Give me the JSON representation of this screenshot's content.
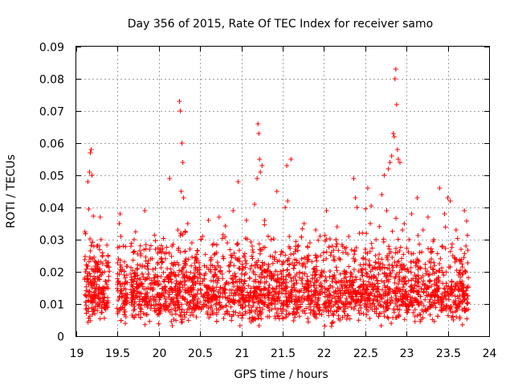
{
  "chart_data": {
    "type": "scatter",
    "title": "Day 356 of 2015, Rate Of TEC Index for receiver samo",
    "xlabel": "GPS time / hours",
    "ylabel": "ROTI / TECUs",
    "xlim": [
      19,
      24
    ],
    "ylim": [
      0,
      0.09
    ],
    "x_ticks": [
      "19",
      "19.5",
      "20",
      "20.5",
      "21",
      "21.5",
      "22",
      "22.5",
      "23",
      "23.5",
      "24"
    ],
    "y_ticks": [
      "0",
      "0.01",
      "0.02",
      "0.03",
      "0.04",
      "0.05",
      "0.06",
      "0.07",
      "0.08",
      "0.09"
    ],
    "grid": true,
    "series": [
      {
        "name": "ROTI",
        "color": "#ff0000",
        "marker": "plus",
        "x": [
          19.12,
          19.13,
          19.14,
          19.15,
          19.16,
          19.17,
          19.18,
          19.19,
          19.2,
          19.21,
          19.22,
          19.23,
          19.25,
          19.27,
          19.29,
          19.3,
          19.32,
          19.34,
          19.36,
          19.38,
          19.5,
          19.51,
          19.52,
          19.53,
          19.54,
          19.55,
          19.56,
          19.57,
          19.58,
          19.6,
          19.68,
          19.7,
          19.72,
          19.75,
          19.78,
          19.8,
          19.83,
          19.86,
          19.88,
          19.9,
          19.93,
          19.96,
          19.98,
          20.0,
          20.03,
          20.06,
          20.1,
          20.13,
          20.16,
          20.2,
          20.23,
          20.25,
          20.26,
          20.27,
          20.28,
          20.29,
          20.3,
          20.32,
          20.35,
          20.38,
          20.4,
          20.43,
          20.46,
          20.5,
          20.53,
          20.56,
          20.6,
          20.63,
          20.66,
          20.7,
          20.73,
          20.76,
          20.8,
          20.83,
          20.86,
          20.9,
          20.93,
          20.96,
          21.0,
          21.03,
          21.06,
          21.1,
          21.13,
          21.16,
          21.18,
          21.19,
          21.2,
          21.21,
          21.22,
          21.23,
          21.25,
          21.28,
          21.3,
          21.33,
          21.36,
          21.4,
          21.43,
          21.46,
          21.5,
          21.53,
          21.55,
          21.56,
          21.58,
          21.6,
          21.63,
          21.66,
          21.7,
          21.73,
          21.76,
          21.8,
          21.83,
          21.86,
          21.9,
          21.93,
          21.96,
          22.0,
          22.03,
          22.06,
          22.1,
          22.13,
          22.16,
          22.2,
          22.23,
          22.26,
          22.3,
          22.33,
          22.36,
          22.38,
          22.4,
          22.43,
          22.46,
          22.5,
          22.53,
          22.56,
          22.6,
          22.63,
          22.66,
          22.7,
          22.73,
          22.76,
          22.78,
          22.8,
          22.82,
          22.84,
          22.85,
          22.86,
          22.87,
          22.88,
          22.89,
          22.9,
          22.92,
          22.95,
          22.98,
          23.0,
          23.03,
          23.06,
          23.1,
          23.13,
          23.16,
          23.2,
          23.23,
          23.26,
          23.3,
          23.33,
          23.36,
          23.4,
          23.43,
          23.46,
          23.5,
          23.53,
          23.56,
          23.6,
          23.63,
          23.66,
          23.7,
          23.72
        ],
        "y": [
          0.0095,
          0.018,
          0.048,
          0.0395,
          0.051,
          0.057,
          0.058,
          0.05,
          0.012,
          0.008,
          0.016,
          0.021,
          0.028,
          0.013,
          0.037,
          0.03,
          0.025,
          0.02,
          0.017,
          0.011,
          0.007,
          0.024,
          0.035,
          0.038,
          0.031,
          0.014,
          0.009,
          0.028,
          0.019,
          0.006,
          0.012,
          0.03,
          0.019,
          0.016,
          0.025,
          0.022,
          0.039,
          0.018,
          0.011,
          0.024,
          0.015,
          0.027,
          0.013,
          0.01,
          0.026,
          0.017,
          0.021,
          0.049,
          0.028,
          0.014,
          0.033,
          0.073,
          0.07,
          0.045,
          0.06,
          0.054,
          0.043,
          0.022,
          0.035,
          0.015,
          0.029,
          0.012,
          0.024,
          0.018,
          0.031,
          0.011,
          0.036,
          0.02,
          0.014,
          0.026,
          0.037,
          0.009,
          0.016,
          0.029,
          0.022,
          0.039,
          0.013,
          0.048,
          0.017,
          0.025,
          0.036,
          0.011,
          0.028,
          0.041,
          0.023,
          0.049,
          0.066,
          0.063,
          0.055,
          0.051,
          0.053,
          0.036,
          0.02,
          0.015,
          0.03,
          0.019,
          0.045,
          0.014,
          0.026,
          0.04,
          0.053,
          0.042,
          0.031,
          0.055,
          0.018,
          0.027,
          0.012,
          0.024,
          0.035,
          0.016,
          0.029,
          0.019,
          0.033,
          0.011,
          0.025,
          0.02,
          0.039,
          0.014,
          0.028,
          0.018,
          0.034,
          0.012,
          0.026,
          0.02,
          0.031,
          0.016,
          0.049,
          0.043,
          0.04,
          0.032,
          0.021,
          0.027,
          0.046,
          0.035,
          0.018,
          0.03,
          0.024,
          0.044,
          0.05,
          0.039,
          0.052,
          0.054,
          0.056,
          0.063,
          0.062,
          0.08,
          0.083,
          0.072,
          0.058,
          0.055,
          0.054,
          0.033,
          0.021,
          0.013,
          0.03,
          0.038,
          0.019,
          0.043,
          0.026,
          0.033,
          0.016,
          0.037,
          0.024,
          0.03,
          0.02,
          0.046,
          0.028,
          0.038,
          0.043,
          0.042,
          0.025,
          0.033,
          0.019,
          0.027,
          0.039,
          0.028
        ]
      }
    ],
    "background": {
      "x_start": 19.1,
      "x_end": 23.75,
      "gaps": [
        [
          19.4,
          19.49
        ],
        [
          19.62,
          19.66
        ]
      ],
      "y_center": 0.0115,
      "y_spread": 0.007,
      "count": 3000,
      "seed": 356
    }
  }
}
